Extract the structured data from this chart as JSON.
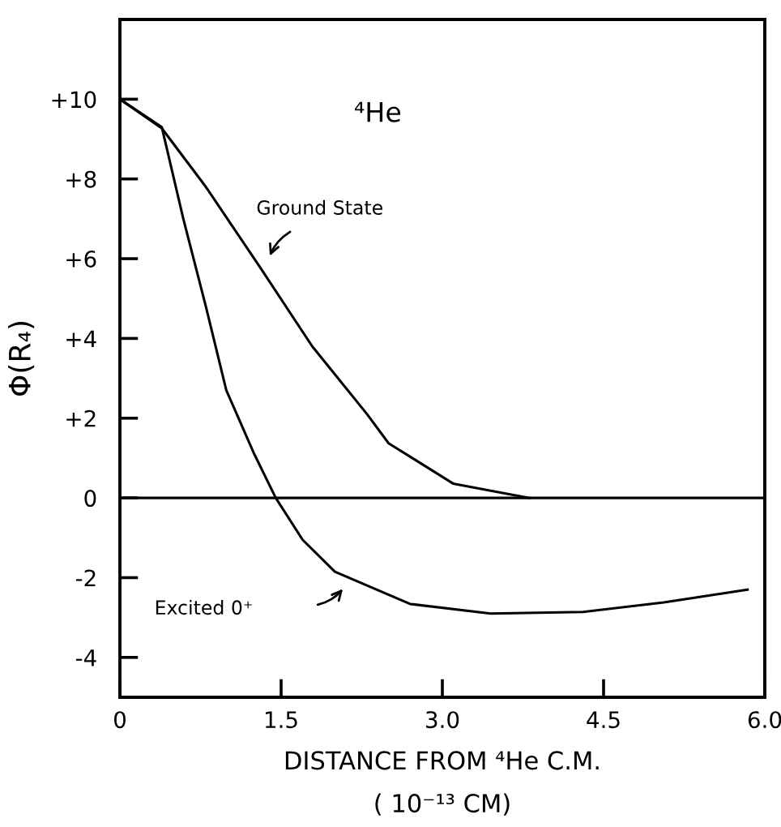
{
  "chart_data": {
    "type": "line",
    "xlabel": "DISTANCE FROM ⁴He C.M.\n( 10⁻¹³ CM)",
    "ylabel": "Φ(R₄)",
    "xlim": [
      0,
      6.0
    ],
    "ylim": [
      -5,
      12
    ],
    "xticks": [
      0,
      1.5,
      {
        "value": 3.0,
        "label": "3.0"
      },
      4.5,
      {
        "value": 6.0,
        "label": "6.0"
      }
    ],
    "yticks": [
      -4,
      -2,
      0,
      {
        "value": 2,
        "label": "+2"
      },
      {
        "value": 4,
        "label": "+4"
      },
      {
        "value": 6,
        "label": "+6"
      },
      {
        "value": 8,
        "label": "+8"
      },
      {
        "value": 10,
        "label": "+10"
      }
    ],
    "series": [
      {
        "color": "#000000",
        "x": [
          0,
          0.39,
          0.8,
          1.3,
          1.79,
          2.3,
          2.5,
          3.1,
          3.81
        ],
        "values": [
          10,
          9.27,
          7.8,
          5.8,
          3.8,
          2.1,
          1.37,
          0.36,
          0
        ]
      },
      {
        "color": "#000000",
        "x": [
          0,
          0.39,
          0.59,
          0.8,
          0.99,
          1.25,
          1.45,
          1.7,
          2.0,
          2.7,
          3.45,
          4.31,
          5.06,
          5.84
        ],
        "values": [
          10,
          9.3,
          7.0,
          4.8,
          2.7,
          1.1,
          0,
          -1.05,
          -1.85,
          -2.66,
          -2.9,
          -2.86,
          -2.62,
          -2.3
        ]
      }
    ],
    "ref_lines": [
      {
        "axis": "y",
        "value": 0,
        "color": "#000000"
      }
    ],
    "annotations": [
      "⁴He",
      "Ground State",
      "Excited 0⁺"
    ],
    "grid": false,
    "legend": false,
    "marker": "none",
    "line_style": "solid"
  }
}
